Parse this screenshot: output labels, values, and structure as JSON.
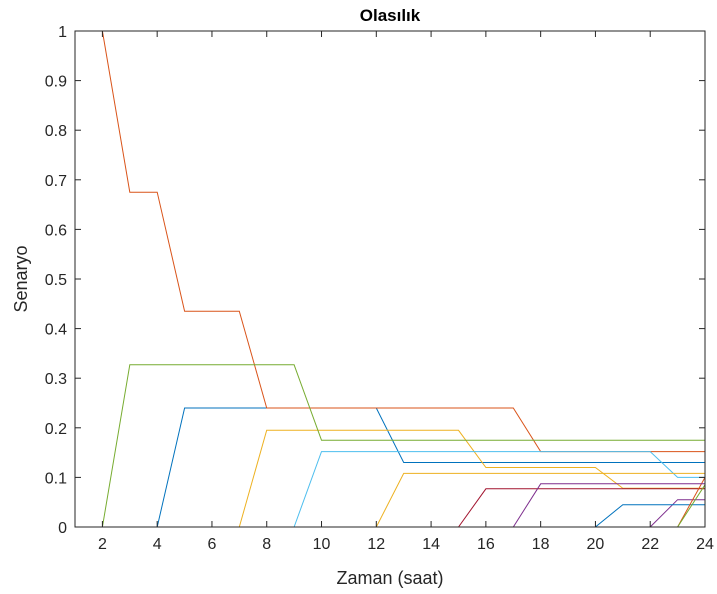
{
  "chart_data": {
    "type": "line",
    "title": "Olasılık",
    "xlabel": "Zaman (saat)",
    "ylabel": "Senaryo",
    "xlim": [
      1,
      24
    ],
    "ylim": [
      0,
      1
    ],
    "xticks": [
      2,
      4,
      6,
      8,
      10,
      12,
      14,
      16,
      18,
      20,
      22,
      24
    ],
    "yticks": [
      0,
      0.1,
      0.2,
      0.3,
      0.4,
      0.5,
      0.6,
      0.7,
      0.8,
      0.9,
      1
    ],
    "grid": false,
    "legend": "none",
    "x": [
      1,
      2,
      3,
      4,
      5,
      6,
      7,
      8,
      9,
      10,
      11,
      12,
      13,
      14,
      15,
      16,
      17,
      18,
      19,
      20,
      21,
      22,
      23,
      24
    ],
    "series": [
      {
        "color": "#0072BD",
        "values": [
          0,
          0,
          0,
          0,
          0.24,
          0.24,
          0.24,
          0.24,
          0.24,
          0.24,
          0.24,
          0.24,
          0.13,
          0.13,
          0.13,
          0.13,
          0.13,
          0.13,
          0.13,
          0.13,
          0.13,
          0.13,
          0.13,
          0.13
        ]
      },
      {
        "color": "#D95319",
        "values": [
          1,
          1,
          0.675,
          0.675,
          0.435,
          0.435,
          0.435,
          0.24,
          0.24,
          0.24,
          0.24,
          0.24,
          0.24,
          0.24,
          0.24,
          0.24,
          0.24,
          0.152,
          0.152,
          0.152,
          0.152,
          0.152,
          0.152,
          0.152
        ]
      },
      {
        "color": "#EDB120",
        "values": [
          0,
          0,
          0,
          0,
          0,
          0,
          0,
          0.195,
          0.195,
          0.195,
          0.195,
          0.195,
          0.195,
          0.195,
          0.195,
          0.12,
          0.12,
          0.12,
          0.12,
          0.12,
          0.078,
          0.078,
          0.078,
          0.078
        ]
      },
      {
        "color": "#7E2F8E",
        "values": [
          0,
          0,
          0,
          0,
          0,
          0,
          0,
          0,
          0,
          0,
          0,
          0,
          0,
          0,
          0,
          0,
          0,
          0,
          0,
          0,
          0,
          0,
          0.055,
          0.055
        ]
      },
      {
        "color": "#77AC30",
        "values": [
          0,
          0,
          0.327,
          0.327,
          0.327,
          0.327,
          0.327,
          0.327,
          0.327,
          0.175,
          0.175,
          0.175,
          0.175,
          0.175,
          0.175,
          0.175,
          0.175,
          0.175,
          0.175,
          0.175,
          0.175,
          0.175,
          0.175,
          0.175
        ]
      },
      {
        "color": "#4DBEEE",
        "values": [
          0,
          0,
          0,
          0,
          0,
          0,
          0,
          0,
          0,
          0.152,
          0.152,
          0.152,
          0.152,
          0.152,
          0.152,
          0.152,
          0.152,
          0.152,
          0.152,
          0.152,
          0.152,
          0.152,
          0.1,
          0.1
        ]
      },
      {
        "color": "#A2142F",
        "values": [
          0,
          0,
          0,
          0,
          0,
          0,
          0,
          0,
          0,
          0,
          0,
          0,
          0,
          0,
          0,
          0.077,
          0.077,
          0.077,
          0.077,
          0.077,
          0.077,
          0.077,
          0.077,
          0.077
        ]
      },
      {
        "color": "#0072BD",
        "values": [
          0,
          0,
          0,
          0,
          0,
          0,
          0,
          0,
          0,
          0,
          0,
          0,
          0,
          0,
          0,
          0,
          0,
          0,
          0,
          0,
          0.045,
          0.045,
          0.045,
          0.045
        ]
      },
      {
        "color": "#D95319",
        "values": [
          0,
          0,
          0,
          0,
          0,
          0,
          0,
          0,
          0,
          0,
          0,
          0,
          0,
          0,
          0,
          0,
          0,
          0,
          0,
          0,
          0,
          0,
          0,
          0.1
        ]
      },
      {
        "color": "#EDB120",
        "values": [
          0,
          0,
          0,
          0,
          0,
          0,
          0,
          0,
          0,
          0,
          0,
          0,
          0.108,
          0.108,
          0.108,
          0.108,
          0.108,
          0.108,
          0.108,
          0.108,
          0.108,
          0.108,
          0.108,
          0.108
        ]
      },
      {
        "color": "#7E2F8E",
        "values": [
          0,
          0,
          0,
          0,
          0,
          0,
          0,
          0,
          0,
          0,
          0,
          0,
          0,
          0,
          0,
          0,
          0,
          0.087,
          0.087,
          0.087,
          0.087,
          0.087,
          0.087,
          0.087
        ]
      },
      {
        "color": "#77AC30",
        "values": [
          0,
          0,
          0,
          0,
          0,
          0,
          0,
          0,
          0,
          0,
          0,
          0,
          0,
          0,
          0,
          0,
          0,
          0,
          0,
          0,
          0,
          0,
          0,
          0.085
        ]
      }
    ]
  }
}
